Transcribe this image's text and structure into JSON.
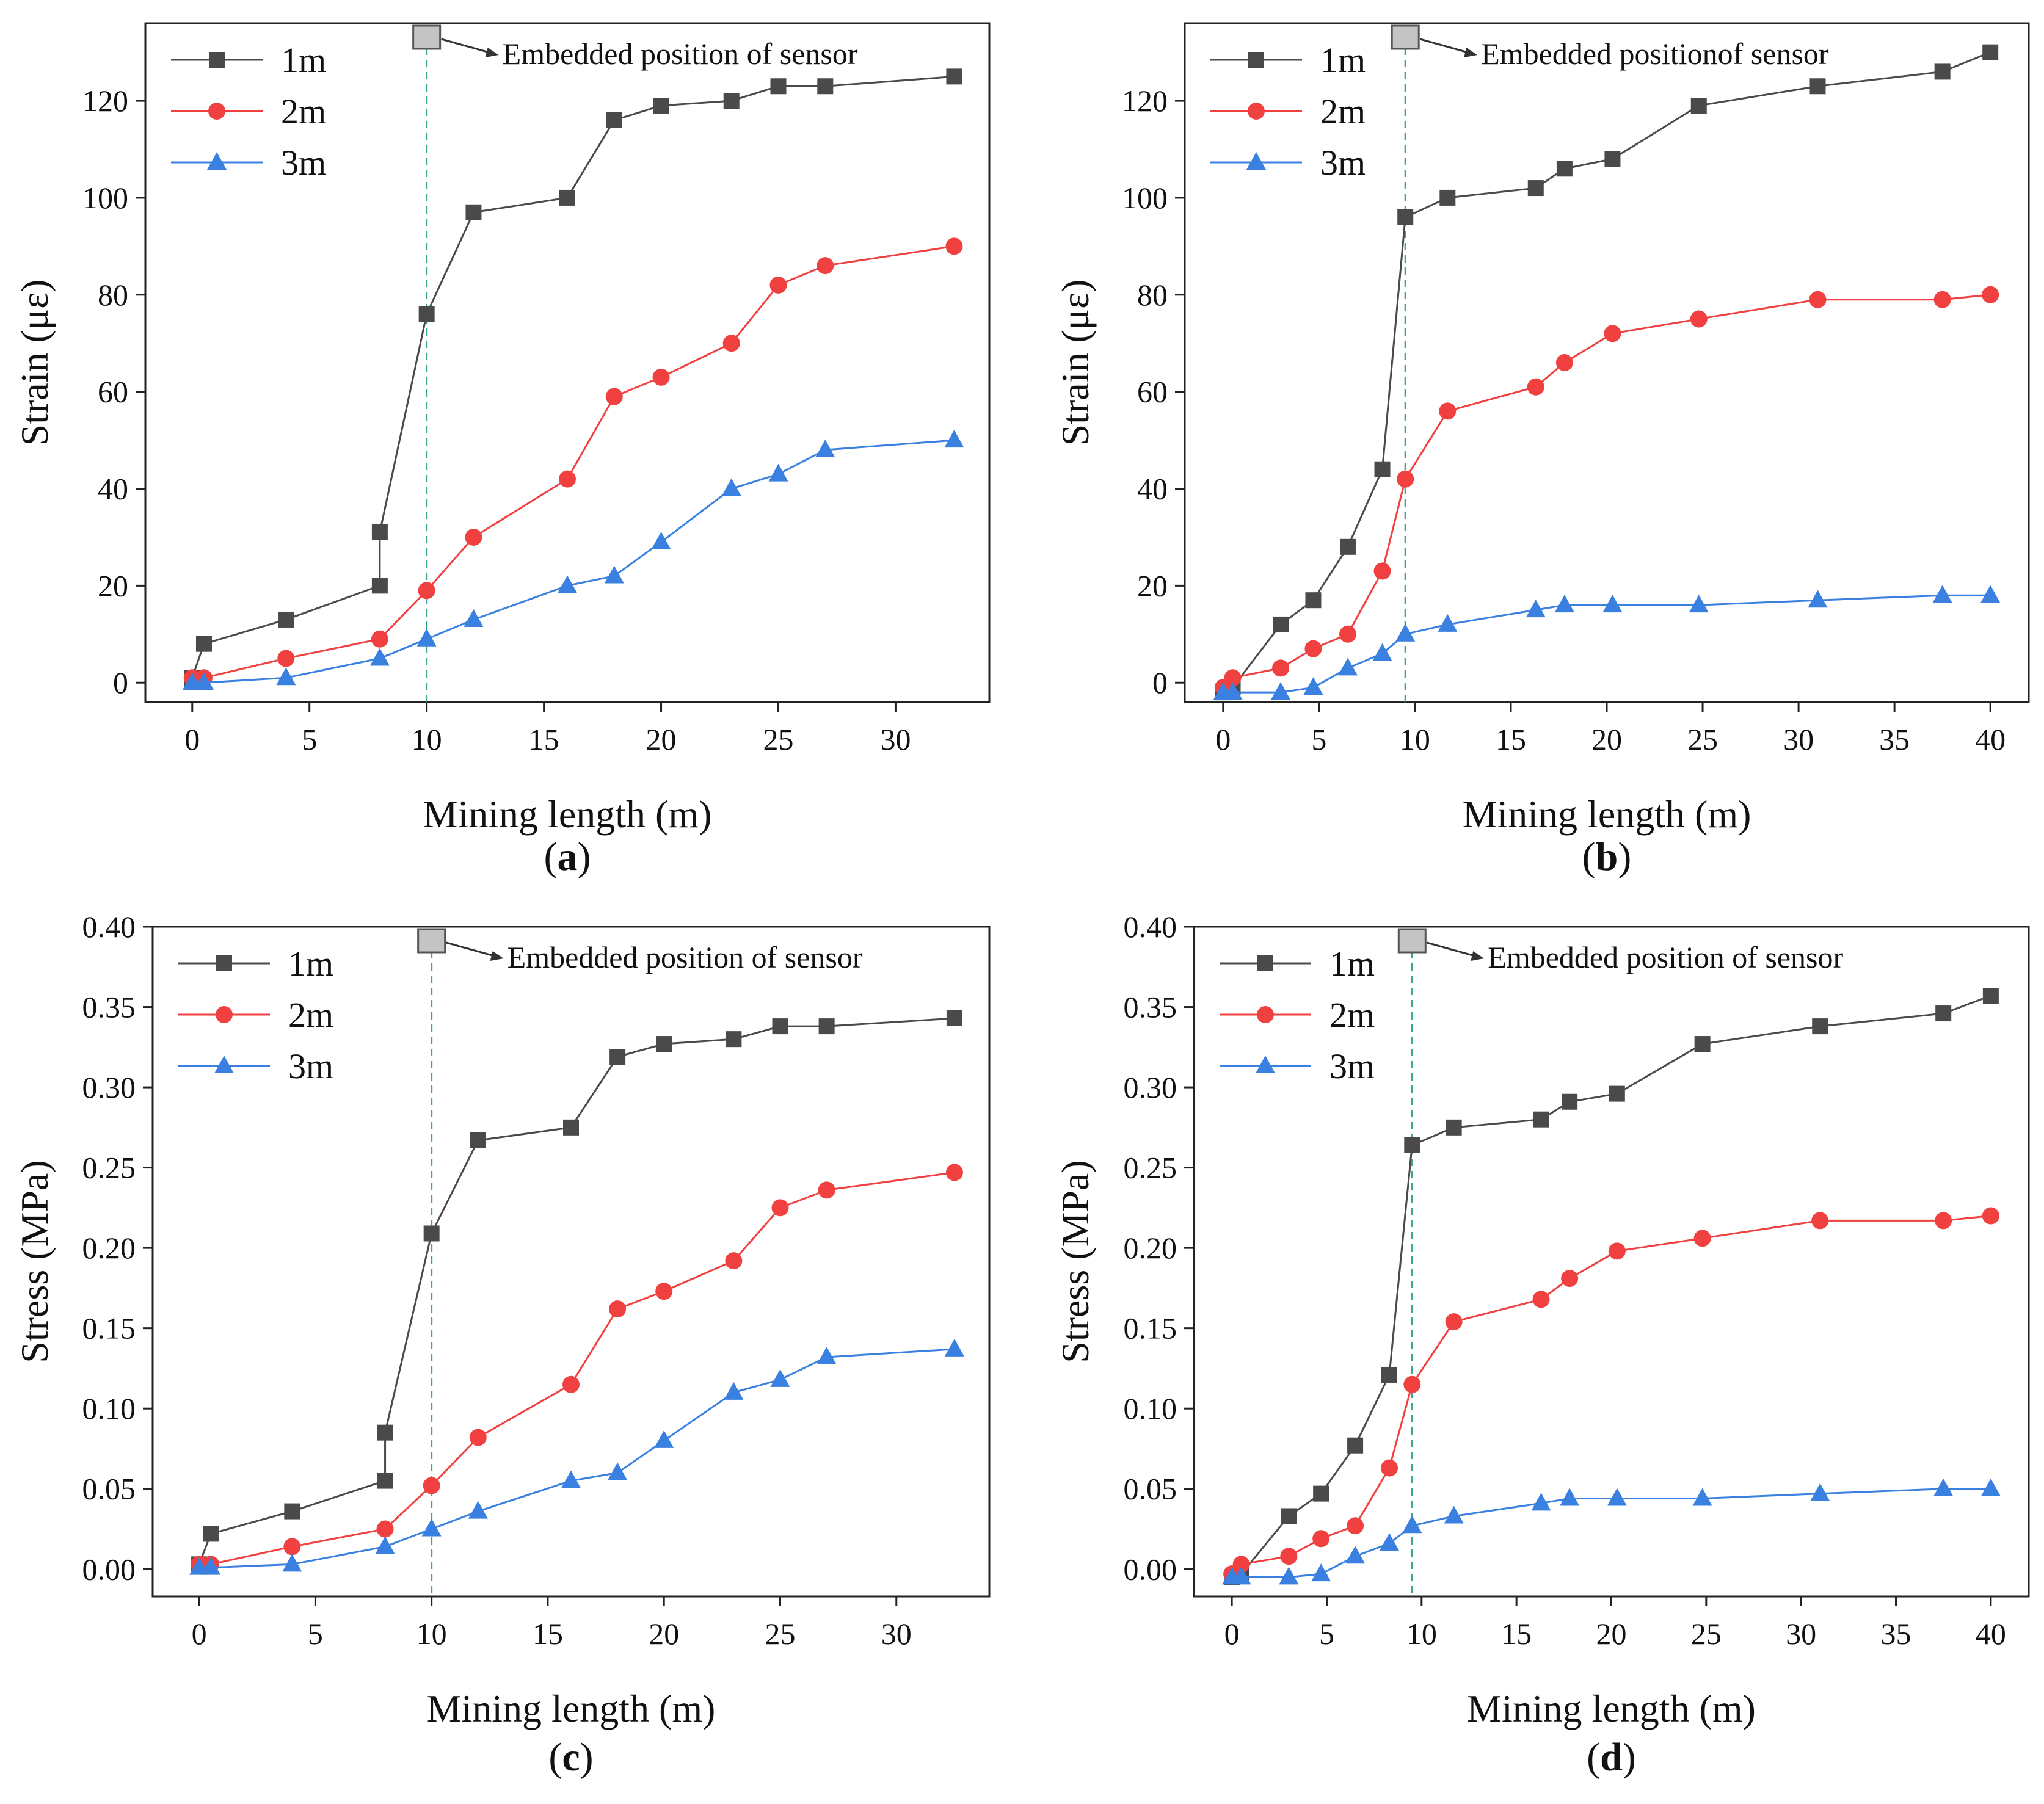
{
  "chart_data": [
    {
      "id": "a",
      "type": "line",
      "caption": "a",
      "xlabel": "Mining length (m)",
      "ylabel": "Strain (με)",
      "xlim": [
        -2,
        34
      ],
      "ylim": [
        -4,
        136
      ],
      "xticks": [
        0,
        5,
        10,
        15,
        20,
        25,
        30
      ],
      "yticks": [
        0,
        20,
        40,
        60,
        80,
        100,
        120
      ],
      "ytick_labels": [
        "0",
        "20",
        "40",
        "60",
        "80",
        "100",
        "120"
      ],
      "sensor_x": 10,
      "annotation": "Embedded position of sensor",
      "series": [
        {
          "name": "1m",
          "color": "#4a4a4a",
          "marker": "square",
          "x": [
            0,
            0.5,
            4,
            8,
            8,
            10,
            12,
            16,
            18,
            20,
            23,
            25,
            27,
            32.5
          ],
          "y": [
            1,
            8,
            13,
            20,
            31,
            76,
            97,
            100,
            116,
            119,
            120,
            123,
            123,
            125
          ]
        },
        {
          "name": "2m",
          "color": "#f04040",
          "marker": "circle",
          "x": [
            0,
            0.5,
            4,
            8,
            10,
            12,
            16,
            18,
            20,
            23,
            25,
            27,
            32.5
          ],
          "y": [
            1,
            1,
            5,
            9,
            19,
            30,
            42,
            59,
            63,
            70,
            82,
            86,
            90
          ]
        },
        {
          "name": "3m",
          "color": "#3a80e0",
          "marker": "triangle",
          "x": [
            0,
            0.5,
            4,
            8,
            10,
            12,
            16,
            18,
            20,
            23,
            25,
            27,
            32.5
          ],
          "y": [
            0,
            0,
            1,
            5,
            9,
            13,
            20,
            22,
            29,
            40,
            43,
            48,
            50
          ]
        }
      ]
    },
    {
      "id": "b",
      "type": "line",
      "caption": "b",
      "xlabel": "Mining length (m)",
      "ylabel": "Strain (με)",
      "xlim": [
        -2,
        42
      ],
      "ylim": [
        -4,
        136
      ],
      "xticks": [
        0,
        5,
        10,
        15,
        20,
        25,
        30,
        35,
        40
      ],
      "yticks": [
        0,
        20,
        40,
        60,
        80,
        100,
        120
      ],
      "ytick_labels": [
        "0",
        "20",
        "40",
        "60",
        "80",
        "100",
        "120"
      ],
      "sensor_x": 9.5,
      "annotation": "Embedded positionof sensor",
      "series": [
        {
          "name": "1m",
          "color": "#4a4a4a",
          "marker": "square",
          "x": [
            0,
            0.5,
            3,
            4.7,
            6.5,
            8.3,
            9.5,
            11.7,
            16.3,
            17.8,
            20.3,
            24.8,
            31,
            37.5,
            40
          ],
          "y": [
            -2,
            -1,
            12,
            17,
            28,
            44,
            96,
            100,
            102,
            106,
            108,
            119,
            123,
            126,
            130
          ]
        },
        {
          "name": "2m",
          "color": "#f04040",
          "marker": "circle",
          "x": [
            0,
            0.5,
            3,
            4.7,
            6.5,
            8.3,
            9.5,
            11.7,
            16.3,
            17.8,
            20.3,
            24.8,
            31,
            37.5,
            40
          ],
          "y": [
            -1,
            1,
            3,
            7,
            10,
            23,
            42,
            56,
            61,
            66,
            72,
            75,
            79,
            79,
            80
          ]
        },
        {
          "name": "3m",
          "color": "#3a80e0",
          "marker": "triangle",
          "x": [
            0,
            0.5,
            3,
            4.7,
            6.5,
            8.3,
            9.5,
            11.7,
            16.3,
            17.8,
            20.3,
            24.8,
            31,
            37.5,
            40
          ],
          "y": [
            -2,
            -2,
            -2,
            -1,
            3,
            6,
            10,
            12,
            15,
            16,
            16,
            16,
            17,
            18,
            18
          ]
        }
      ]
    },
    {
      "id": "c",
      "type": "line",
      "caption": "c",
      "xlabel": "Mining length (m)",
      "ylabel": "Stress (MPa)",
      "xlim": [
        -2,
        34
      ],
      "ylim": [
        -0.017,
        0.4
      ],
      "xticks": [
        0,
        5,
        10,
        15,
        20,
        25,
        30
      ],
      "yticks": [
        0,
        0.05,
        0.1,
        0.15,
        0.2,
        0.25,
        0.3,
        0.35,
        0.4
      ],
      "ytick_labels": [
        "0.00",
        "0.05",
        "0.10",
        "0.15",
        "0.20",
        "0.25",
        "0.30",
        "0.35",
        "0.40"
      ],
      "sensor_x": 10,
      "annotation": "Embedded position of sensor",
      "series": [
        {
          "name": "1m",
          "color": "#4a4a4a",
          "marker": "square",
          "x": [
            0,
            0.5,
            4,
            8,
            8,
            10,
            12,
            16,
            18,
            20,
            23,
            25,
            27,
            32.5
          ],
          "y": [
            0.003,
            0.022,
            0.036,
            0.055,
            0.085,
            0.209,
            0.267,
            0.275,
            0.319,
            0.327,
            0.33,
            0.338,
            0.338,
            0.343
          ]
        },
        {
          "name": "2m",
          "color": "#f04040",
          "marker": "circle",
          "x": [
            0,
            0.5,
            4,
            8,
            10,
            12,
            16,
            18,
            20,
            23,
            25,
            27,
            32.5
          ],
          "y": [
            0.003,
            0.003,
            0.014,
            0.025,
            0.052,
            0.082,
            0.115,
            0.162,
            0.173,
            0.192,
            0.225,
            0.236,
            0.247
          ]
        },
        {
          "name": "3m",
          "color": "#3a80e0",
          "marker": "triangle",
          "x": [
            0,
            0.5,
            4,
            8,
            10,
            12,
            16,
            18,
            20,
            23,
            25,
            27,
            32.5
          ],
          "y": [
            0.001,
            0.001,
            0.003,
            0.014,
            0.025,
            0.036,
            0.055,
            0.06,
            0.08,
            0.11,
            0.118,
            0.132,
            0.137
          ]
        }
      ]
    },
    {
      "id": "d",
      "type": "line",
      "caption": "d",
      "xlabel": "Mining length (m)",
      "ylabel": "Stress (MPa)",
      "xlim": [
        -2,
        42
      ],
      "ylim": [
        -0.017,
        0.4
      ],
      "xticks": [
        0,
        5,
        10,
        15,
        20,
        25,
        30,
        35,
        40
      ],
      "yticks": [
        0,
        0.05,
        0.1,
        0.15,
        0.2,
        0.25,
        0.3,
        0.35,
        0.4
      ],
      "ytick_labels": [
        "0.00",
        "0.05",
        "0.10",
        "0.15",
        "0.20",
        "0.25",
        "0.30",
        "0.35",
        "0.40"
      ],
      "sensor_x": 9.5,
      "annotation": "Embedded position of sensor",
      "series": [
        {
          "name": "1m",
          "color": "#4a4a4a",
          "marker": "square",
          "x": [
            0,
            0.5,
            3,
            4.7,
            6.5,
            8.3,
            9.5,
            11.7,
            16.3,
            17.8,
            20.3,
            24.8,
            31,
            37.5,
            40
          ],
          "y": [
            -0.005,
            -0.003,
            0.033,
            0.047,
            0.077,
            0.121,
            0.264,
            0.275,
            0.28,
            0.291,
            0.296,
            0.327,
            0.338,
            0.346,
            0.357
          ]
        },
        {
          "name": "2m",
          "color": "#f04040",
          "marker": "circle",
          "x": [
            0,
            0.5,
            3,
            4.7,
            6.5,
            8.3,
            9.5,
            11.7,
            16.3,
            17.8,
            20.3,
            24.8,
            31,
            37.5,
            40
          ],
          "y": [
            -0.003,
            0.003,
            0.008,
            0.019,
            0.027,
            0.063,
            0.115,
            0.154,
            0.168,
            0.181,
            0.198,
            0.206,
            0.217,
            0.217,
            0.22
          ]
        },
        {
          "name": "3m",
          "color": "#3a80e0",
          "marker": "triangle",
          "x": [
            0,
            0.5,
            3,
            4.7,
            6.5,
            8.3,
            9.5,
            11.7,
            16.3,
            17.8,
            20.3,
            24.8,
            31,
            37.5,
            40
          ],
          "y": [
            -0.005,
            -0.005,
            -0.005,
            -0.003,
            0.008,
            0.016,
            0.027,
            0.033,
            0.041,
            0.044,
            0.044,
            0.044,
            0.047,
            0.05,
            0.05
          ]
        }
      ]
    }
  ]
}
